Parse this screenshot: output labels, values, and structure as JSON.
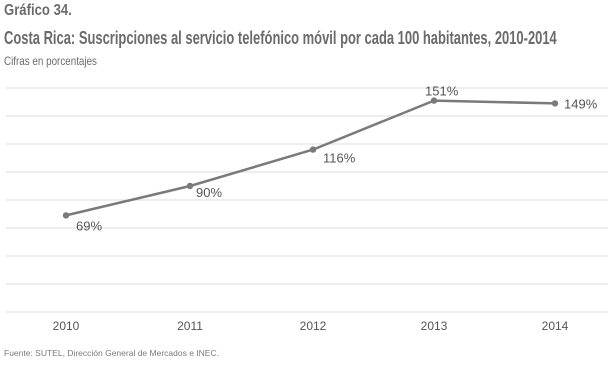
{
  "header": {
    "figure_number": "Gráfico 34.",
    "title": "Costa Rica: Suscripciones al servicio telefónico móvil por cada 100 habitantes,  2010-2014",
    "subtitle": "Cifras en porcentajes"
  },
  "footer": {
    "source": "Fuente: SUTEL, Dirección General de Mercados e INEC."
  },
  "chart_data": {
    "type": "line",
    "title": "Costa Rica: Suscripciones al servicio telefónico móvil por cada 100 habitantes,  2010-2014",
    "subtitle": "Cifras en porcentajes",
    "xlabel": "",
    "ylabel": "",
    "categories": [
      "2010",
      "2011",
      "2012",
      "2013",
      "2014"
    ],
    "series": [
      {
        "values": [
          69,
          90,
          116,
          151,
          149
        ],
        "color": "#7a7a7a"
      }
    ],
    "data_labels": [
      "69%",
      "90%",
      "116%",
      "151%",
      "149%"
    ],
    "ylim": [
      0,
      160
    ],
    "grid": true,
    "legend": "none",
    "colors": {
      "line": "#7a7a7a",
      "grid": "#dcdcdc",
      "marker": "#7a7a7a"
    }
  }
}
